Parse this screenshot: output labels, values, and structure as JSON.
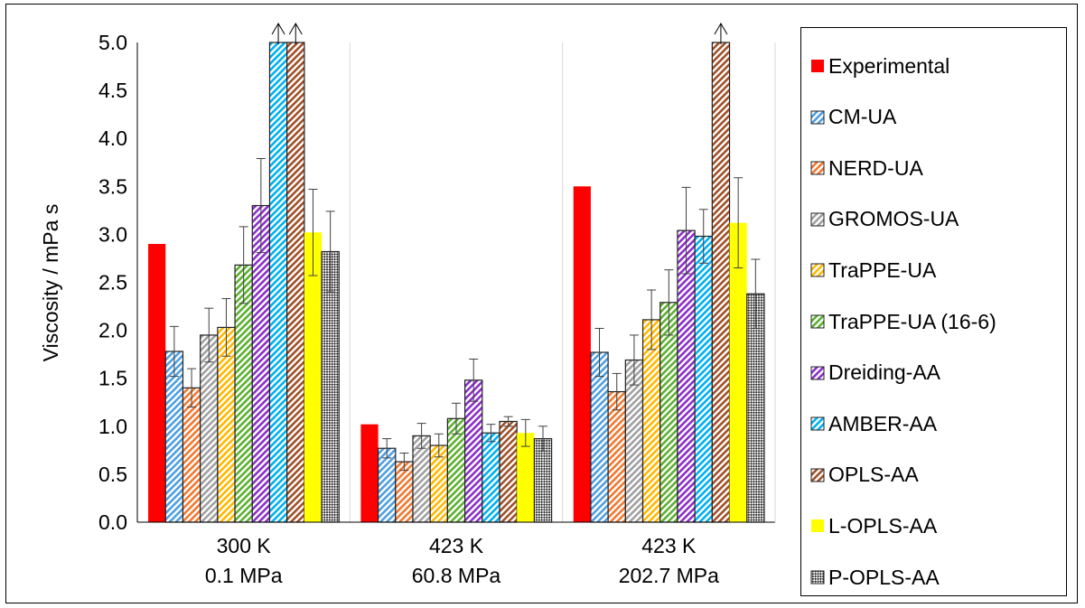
{
  "chart_data": {
    "type": "bar",
    "ylabel": "Viscosity / mPa s",
    "xlabel": "",
    "ylim": [
      0,
      5.0
    ],
    "yticks": [
      "0.0",
      "0.5",
      "1.0",
      "1.5",
      "2.0",
      "2.5",
      "3.0",
      "3.5",
      "4.0",
      "4.5",
      "5.0"
    ],
    "categories": [
      {
        "line1": "300 K",
        "line2": "0.1 MPa"
      },
      {
        "line1": "423 K",
        "line2": "60.8 MPa"
      },
      {
        "line1": "423 K",
        "line2": "202.7 MPa"
      }
    ],
    "grid": "vertical category separators",
    "legend_position": "right",
    "series": [
      {
        "name": "Experimental",
        "color": "#ff0000",
        "pattern": "solid",
        "values": [
          2.9,
          1.02,
          3.5
        ],
        "errors": [
          null,
          null,
          null
        ]
      },
      {
        "name": "CM-UA",
        "color": "#4f9fe0",
        "pattern": "hatch",
        "values": [
          1.78,
          0.77,
          1.77
        ],
        "errors": [
          0.26,
          0.1,
          0.25
        ]
      },
      {
        "name": "NERD-UA",
        "color": "#f07830",
        "pattern": "hatch",
        "values": [
          1.4,
          0.63,
          1.36
        ],
        "errors": [
          0.2,
          0.09,
          0.19
        ]
      },
      {
        "name": "GROMOS-UA",
        "color": "#a0a0a0",
        "pattern": "hatch",
        "values": [
          1.95,
          0.9,
          1.69
        ],
        "errors": [
          0.28,
          0.13,
          0.26
        ]
      },
      {
        "name": "TraPPE-UA",
        "color": "#ffb800",
        "pattern": "hatch",
        "values": [
          2.03,
          0.8,
          2.11
        ],
        "errors": [
          0.3,
          0.12,
          0.31
        ]
      },
      {
        "name": "TraPPE-UA (16-6)",
        "color": "#5cb030",
        "pattern": "hatch",
        "values": [
          2.68,
          1.08,
          2.29
        ],
        "errors": [
          0.4,
          0.16,
          0.34
        ]
      },
      {
        "name": "Dreiding-AA",
        "color": "#8a30c8",
        "pattern": "hatch",
        "values": [
          3.3,
          1.48,
          3.04
        ],
        "errors": [
          0.49,
          0.22,
          0.45
        ]
      },
      {
        "name": "AMBER-AA",
        "color": "#00b0f0",
        "pattern": "hatch",
        "values": [
          5.0,
          0.93,
          2.98
        ],
        "errors": [
          null,
          0.09,
          0.28
        ],
        "exceeds_axis": [
          true,
          false,
          false
        ]
      },
      {
        "name": "OPLS-AA",
        "color": "#a05028",
        "pattern": "hatch",
        "values": [
          5.0,
          1.05,
          5.0
        ],
        "errors": [
          null,
          0.05,
          null
        ],
        "exceeds_axis": [
          true,
          false,
          true
        ]
      },
      {
        "name": "L-OPLS-AA",
        "color": "#ffff00",
        "pattern": "solid",
        "values": [
          3.02,
          0.93,
          3.12
        ],
        "errors": [
          0.45,
          0.14,
          0.47
        ]
      },
      {
        "name": "P-OPLS-AA",
        "color": "#303030",
        "pattern": "checker",
        "values": [
          2.82,
          0.87,
          2.38
        ],
        "errors": [
          0.42,
          0.13,
          0.36
        ]
      }
    ]
  }
}
